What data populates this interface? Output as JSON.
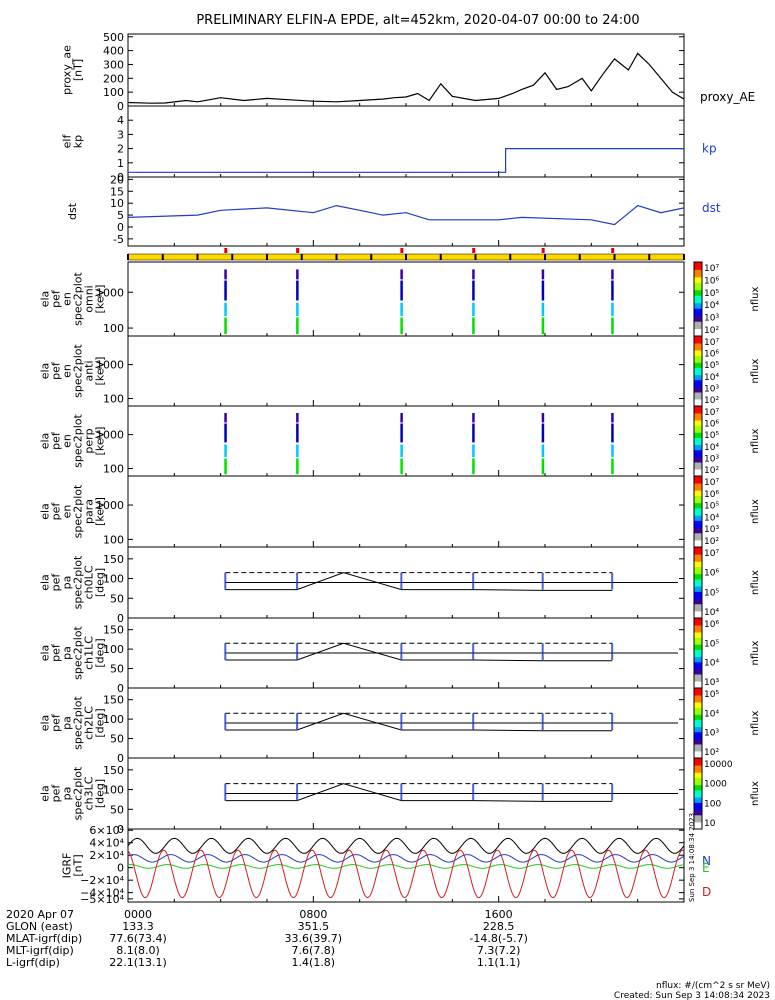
{
  "title": "PRELIMINARY ELFIN-A EPDE, alt=452km, 2020-04-07 00:00 to 24:00",
  "colors": {
    "trace": "#000000",
    "blue": "#1e3cc8",
    "green": "#22c81e",
    "red": "#d01e1e",
    "orbit_bar": "#ffd700",
    "science_mark": "#e00000"
  },
  "chart_data": [
    {
      "id": "proxy_ae",
      "type": "line",
      "ylabel": [
        "proxy_ae",
        "[nT]"
      ],
      "ylim": [
        0,
        520
      ],
      "yticks": [
        "500",
        "400",
        "300",
        "200",
        "100",
        "0"
      ],
      "series": [
        {
          "name": "proxy_AE",
          "color": "#000000",
          "x": [
            0,
            1,
            1.6,
            2.5,
            3.0,
            3.5,
            4.0,
            5.0,
            6.0,
            7.0,
            8.0,
            9.0,
            10.0,
            11.0,
            11.5,
            12.0,
            12.5,
            13.0,
            13.5,
            14.0,
            15.0,
            16.0,
            16.6,
            17.0,
            17.5,
            18.0,
            18.5,
            19.0,
            19.6,
            20.0,
            20.5,
            21.0,
            21.6,
            22.0,
            22.5,
            23.0,
            23.5,
            24.0
          ],
          "values": [
            25,
            20,
            22,
            40,
            30,
            45,
            60,
            40,
            55,
            45,
            35,
            30,
            40,
            50,
            60,
            65,
            90,
            40,
            160,
            70,
            40,
            55,
            90,
            120,
            150,
            240,
            120,
            140,
            200,
            110,
            230,
            340,
            260,
            380,
            300,
            200,
            100,
            50
          ]
        }
      ]
    },
    {
      "id": "kp",
      "type": "line",
      "ylabel": [
        "elf",
        "kp"
      ],
      "ylim": [
        0,
        5
      ],
      "yticks": [
        "4",
        "3",
        "2",
        "1",
        "0"
      ],
      "series": [
        {
          "name": "kp",
          "color": "#1e3cc8",
          "x": [
            0,
            16.3,
            16.3,
            24
          ],
          "values": [
            0.33,
            0.33,
            2,
            2
          ]
        }
      ]
    },
    {
      "id": "dst",
      "type": "line",
      "ylabel": [
        "dst",
        ""
      ],
      "ylim": [
        -8,
        21
      ],
      "yticks": [
        "20",
        "15",
        "10",
        "5",
        "0",
        "-5"
      ],
      "series": [
        {
          "name": "dst",
          "color": "#1e3cc8",
          "x": [
            0,
            3,
            4,
            6,
            8,
            9,
            10,
            11,
            12,
            13,
            16,
            17,
            20,
            21,
            22,
            23,
            24
          ],
          "values": [
            4,
            5,
            7,
            8,
            6,
            9,
            7,
            5,
            6,
            3,
            3,
            4,
            3,
            1,
            9,
            6,
            8
          ]
        }
      ]
    },
    {
      "id": "omni",
      "type": "heatmap",
      "ylabel": [
        "ela",
        "pef",
        "en",
        "spec2plot",
        "omni",
        "[keV]"
      ],
      "yscale": "log",
      "ylim": [
        60,
        7000
      ],
      "yticks": [
        "1000",
        "100"
      ],
      "colorbar": {
        "label": "nflux",
        "ticks": [
          "10⁷",
          "10⁶",
          "10⁵",
          "10⁴",
          "10³",
          "10²"
        ]
      }
    },
    {
      "id": "anti",
      "type": "heatmap",
      "ylabel": [
        "ela",
        "pef",
        "en",
        "spec2plot",
        "anti",
        "[keV]"
      ],
      "yscale": "log",
      "ylim": [
        60,
        7000
      ],
      "yticks": [
        "1000",
        "100"
      ],
      "colorbar": {
        "label": "nflux",
        "ticks": [
          "10⁷",
          "10⁶",
          "10⁵",
          "10⁴",
          "10³",
          "10²"
        ]
      }
    },
    {
      "id": "perp",
      "type": "heatmap",
      "ylabel": [
        "ela",
        "pef",
        "en",
        "spec2plot",
        "perp",
        "[keV]"
      ],
      "yscale": "log",
      "ylim": [
        60,
        7000
      ],
      "yticks": [
        "1000",
        "100"
      ],
      "colorbar": {
        "label": "nflux",
        "ticks": [
          "10⁷",
          "10⁶",
          "10⁵",
          "10⁴",
          "10³",
          "10²"
        ]
      }
    },
    {
      "id": "para",
      "type": "heatmap",
      "ylabel": [
        "ela",
        "pef",
        "en",
        "spec2plot",
        "para",
        "[keV]"
      ],
      "yscale": "log",
      "ylim": [
        60,
        7000
      ],
      "yticks": [
        "1000",
        "100"
      ],
      "colorbar": {
        "label": "nflux",
        "ticks": [
          "10⁷",
          "10⁶",
          "10⁵",
          "10⁴",
          "10³",
          "10²"
        ]
      }
    },
    {
      "id": "ch0LC",
      "type": "heatmap",
      "ylabel": [
        "ela",
        "pef",
        "pa",
        "spec2plot",
        "ch0LC",
        "[deg]"
      ],
      "ylim": [
        0,
        180
      ],
      "yticks": [
        "150",
        "100",
        "50",
        "0"
      ],
      "colorbar": {
        "label": "nflux",
        "ticks": [
          "10⁷",
          "10⁶",
          "10⁵",
          "10⁴"
        ]
      }
    },
    {
      "id": "ch1LC",
      "type": "heatmap",
      "ylabel": [
        "ela",
        "pef",
        "pa",
        "spec2plot",
        "ch1LC",
        "[deg]"
      ],
      "ylim": [
        0,
        180
      ],
      "yticks": [
        "150",
        "100",
        "50",
        "0"
      ],
      "colorbar": {
        "label": "nflux",
        "ticks": [
          "10⁶",
          "10⁵",
          "10⁴",
          "10³"
        ]
      }
    },
    {
      "id": "ch2LC",
      "type": "heatmap",
      "ylabel": [
        "ela",
        "pef",
        "pa",
        "spec2plot",
        "ch2LC",
        "[deg]"
      ],
      "ylim": [
        0,
        180
      ],
      "yticks": [
        "150",
        "100",
        "50",
        "0"
      ],
      "colorbar": {
        "label": "nflux",
        "ticks": [
          "10⁵",
          "10⁴",
          "10³",
          "10²"
        ]
      }
    },
    {
      "id": "ch3LC",
      "type": "heatmap",
      "ylabel": [
        "ela",
        "pef",
        "pa",
        "spec2plot",
        "ch3LC",
        "[deg]"
      ],
      "ylim": [
        0,
        180
      ],
      "yticks": [
        "150",
        "100",
        "50",
        "0"
      ],
      "colorbar": {
        "label": "nflux",
        "ticks": [
          "10000",
          "1000",
          "100",
          "10"
        ]
      }
    },
    {
      "id": "igrf",
      "type": "line",
      "ylabel": [
        "IGRF",
        "[nT]"
      ],
      "ylim": [
        -55000,
        62000
      ],
      "yticks": [
        "6×10⁴",
        "4×10⁴",
        "2×10⁴",
        "0",
        "−2×10⁴",
        "−4×10⁴",
        "−5×10⁴"
      ],
      "legend": [
        "N",
        "E",
        "D"
      ]
    }
  ],
  "pa_panels": {
    "lc_deg": 90,
    "dashed_deg": 115,
    "solid_x": [
      4.2,
      7.3,
      9.3,
      11.8,
      14.9,
      17.9,
      20.9
    ],
    "solid_y": [
      72,
      72,
      115,
      72,
      72,
      70,
      70
    ]
  },
  "orbit_bar": {
    "science_marks_hr": [
      4.2,
      7.3,
      11.8,
      14.9,
      17.9,
      20.9
    ]
  },
  "xaxis": {
    "ticks": [
      "0000",
      "0800",
      "1600"
    ],
    "tick_hours": [
      0,
      8,
      16
    ]
  },
  "ephemeris": [
    {
      "label": "2020 Apr 07",
      "values": [
        "0000",
        "0800",
        "1600"
      ]
    },
    {
      "label": "GLON (east)",
      "values": [
        "133.3",
        "351.5",
        "228.5"
      ]
    },
    {
      "label": "MLAT-igrf(dip)",
      "values": [
        "77.6(73.4)",
        "33.6(39.7)",
        "-14.8(-5.7)"
      ]
    },
    {
      "label": "MLT-igrf(dip)",
      "values": [
        "8.1(8.0)",
        "7.6(7.8)",
        "7.3(7.2)"
      ]
    },
    {
      "label": "L-igrf(dip)",
      "values": [
        "22.1(13.1)",
        "1.4(1.8)",
        "1.1(1.1)"
      ]
    }
  ],
  "footer": {
    "units": "nflux: #/(cm^2 s sr MeV)",
    "created": "Created: Sun Sep  3 14:08:34 2023",
    "side_stamp": "Sun Sep  3 14:08:34 2023"
  }
}
